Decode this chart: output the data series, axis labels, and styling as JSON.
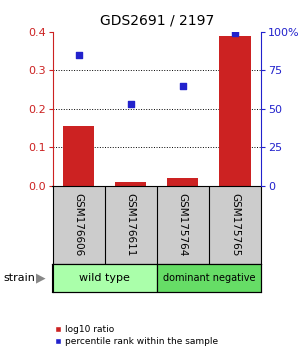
{
  "title": "GDS2691 / 2197",
  "samples": [
    "GSM176606",
    "GSM176611",
    "GSM175764",
    "GSM175765"
  ],
  "log10_ratio": [
    0.155,
    0.01,
    0.02,
    0.39
  ],
  "percentile_rank": [
    85,
    53,
    65,
    99
  ],
  "bar_color": "#cc2222",
  "marker_color": "#2222cc",
  "ylim_left": [
    0,
    0.4
  ],
  "ylim_right": [
    0,
    100
  ],
  "yticks_left": [
    0,
    0.1,
    0.2,
    0.3,
    0.4
  ],
  "ytick_labels_right": [
    "0",
    "25",
    "50",
    "75",
    "100%"
  ],
  "yticks_right": [
    0,
    25,
    50,
    75,
    100
  ],
  "groups": [
    {
      "label": "wild type",
      "samples": [
        0,
        1
      ],
      "color": "#aaffaa"
    },
    {
      "label": "dominant negative",
      "samples": [
        2,
        3
      ],
      "color": "#66dd66"
    }
  ],
  "strain_label": "strain",
  "legend_bar_label": "log10 ratio",
  "legend_marker_label": "percentile rank within the sample",
  "plot_bg_color": "#ffffff",
  "label_area_color": "#cccccc",
  "bar_width": 0.6
}
